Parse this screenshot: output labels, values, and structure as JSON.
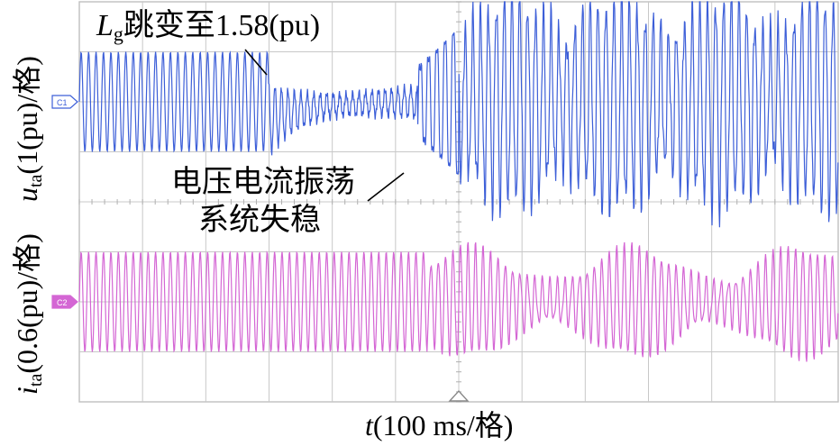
{
  "chart_data": {
    "type": "line",
    "x_unit_label": "t(100 ms/格)",
    "x_label": {
      "var": "t",
      "rest": "(100 ms/格)"
    },
    "grid": true,
    "grid_divisions": {
      "x": 12,
      "y": 8
    },
    "channels": [
      {
        "marker": "C1",
        "color": "#3d5fd8",
        "y_label": {
          "var": "u",
          "sub": "ta",
          "rest": "(1(pu)/格)"
        },
        "scale": "1(pu)/格",
        "segments": [
          {
            "t_div": [
              0.0,
              3.0
            ],
            "behavior": "steady sine",
            "amplitude_div": 1.0,
            "cycles": 17
          },
          {
            "t_div": [
              3.0,
              5.35
            ],
            "behavior": "damped oscillation after step, small ripple",
            "amplitude_div": 0.35
          },
          {
            "t_div": [
              5.35,
              6.0
            ],
            "behavior": "growing oscillation",
            "amplitude_div": 1.3
          },
          {
            "t_div": [
              6.0,
              12.0
            ],
            "behavior": "large distorted oscillation, unstable",
            "amplitude_div": 2.3
          }
        ]
      },
      {
        "marker": "C2",
        "color": "#d466d4",
        "y_label": {
          "var": "i",
          "sub": "ta",
          "rest": "(0.6(pu)/格)"
        },
        "scale": "0.6(pu)/格",
        "segments": [
          {
            "t_div": [
              0.0,
              5.5
            ],
            "behavior": "steady sine",
            "amplitude_div": 1.0
          },
          {
            "t_div": [
              5.5,
              12.0
            ],
            "behavior": "beating oscillation, unstable",
            "amplitude_div": 1.1
          }
        ]
      }
    ],
    "annotations": [
      {
        "id": "lg-step",
        "text": "L g跳变至1.58(pu)",
        "var": "L",
        "sub": "g",
        "rest": "跳变至1.58(pu)",
        "at_t_div": 3.0
      },
      {
        "id": "oscillation",
        "text": "电压电流振荡"
      },
      {
        "id": "unstable",
        "text": "系统失稳"
      }
    ]
  }
}
